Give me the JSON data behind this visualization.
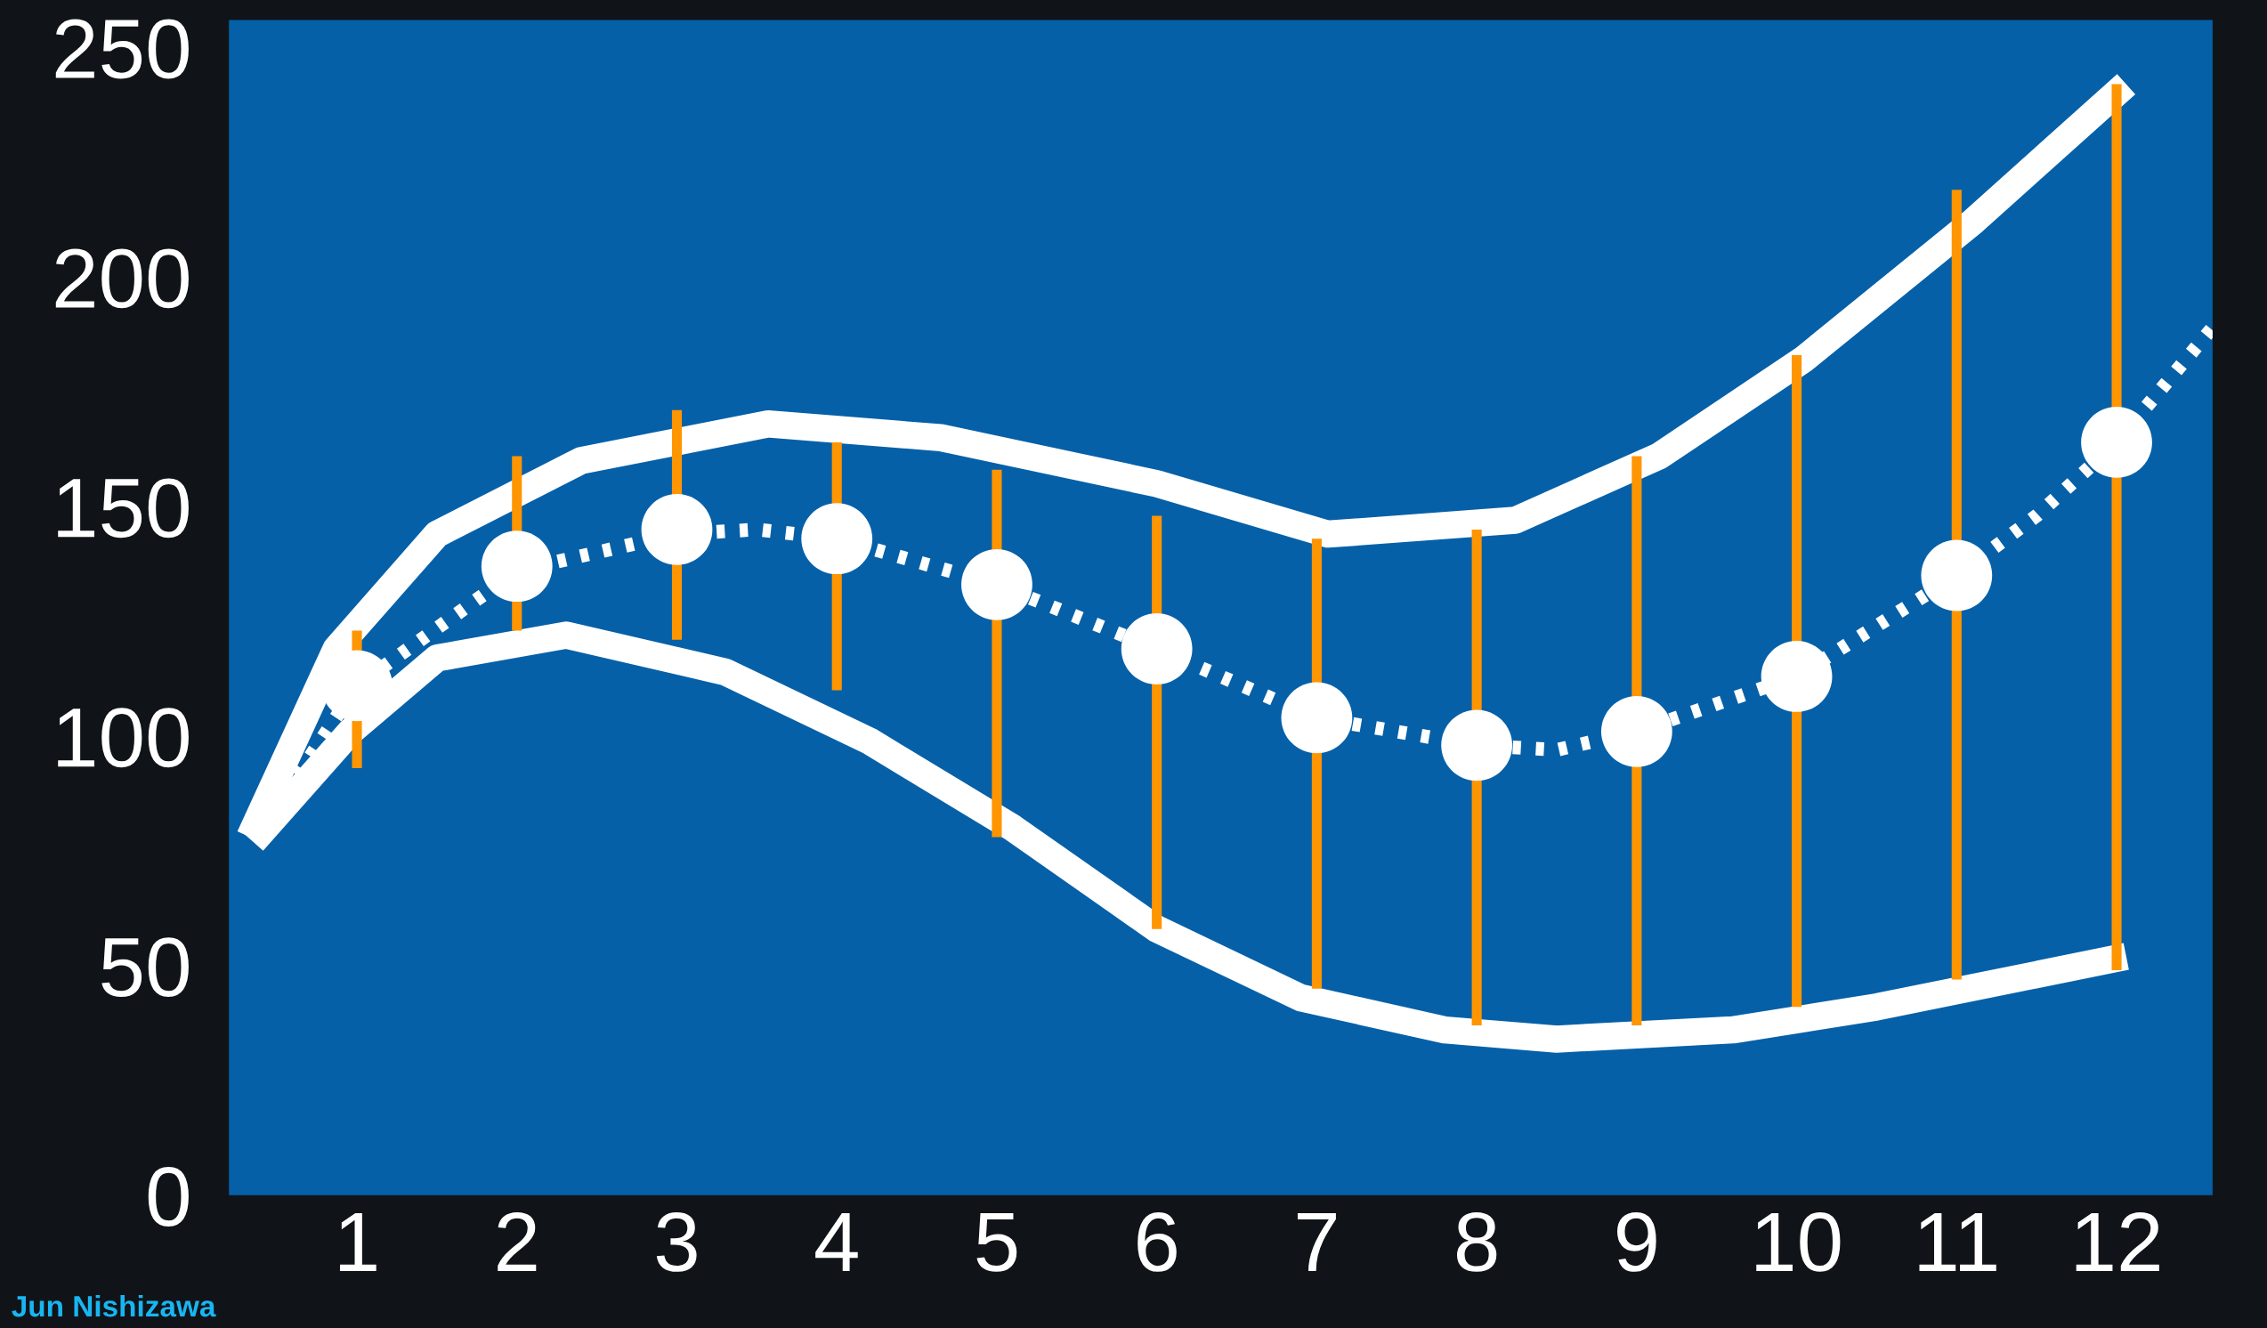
{
  "chart_data": {
    "type": "scatter",
    "x": [
      1,
      2,
      3,
      4,
      5,
      6,
      7,
      8,
      9,
      10,
      11,
      12
    ],
    "xlim": [
      0.2,
      12.6
    ],
    "xticks": [
      1,
      2,
      3,
      4,
      5,
      6,
      7,
      8,
      9,
      10,
      11,
      12
    ],
    "ylim": [
      0,
      256
    ],
    "yticks": [
      0,
      50,
      100,
      150,
      200,
      250
    ],
    "grid": false,
    "legend": false,
    "series": [
      {
        "type": "line",
        "color": "#ffffff",
        "line_style": "solid",
        "marker": "none",
        "x": [
          0.33,
          0.87,
          1.5,
          2.4,
          3.57,
          4.65,
          6.0,
          7.07,
          8.24,
          9.14,
          10.04,
          11.1,
          12.06
        ],
        "values": [
          78,
          119,
          144,
          160,
          168,
          165,
          155,
          144,
          147,
          161,
          182,
          212,
          242
        ]
      },
      {
        "type": "line",
        "color": "#ffffff",
        "line_style": "solid",
        "marker": "none",
        "x": [
          0.35,
          0.96,
          1.5,
          2.31,
          3.3,
          4.2,
          5.1,
          6.0,
          6.9,
          7.8,
          8.5,
          9.6,
          10.5,
          12.06
        ],
        "values": [
          77,
          101,
          117,
          122,
          114,
          99,
          80,
          58,
          43,
          36,
          34,
          36,
          41,
          52
        ]
      },
      {
        "type": "line",
        "color": "#ffffff",
        "line_style": "dotted",
        "marker": "none",
        "x": [
          0.47,
          1,
          2,
          3,
          3.5,
          4,
          5,
          6,
          7,
          8,
          8.5,
          9,
          10,
          11,
          11.5,
          12,
          12.6
        ],
        "values": [
          83,
          111,
          136,
          144,
          145,
          143,
          133,
          119,
          104,
          98,
          97,
          101,
          113,
          135,
          148,
          164,
          189
        ]
      },
      {
        "color": "#ffffff",
        "marker": "circle",
        "values": [
          111,
          137,
          145,
          143,
          133,
          119,
          104,
          98,
          101,
          113,
          135,
          164
        ],
        "errors": [
          [
            93,
            123
          ],
          [
            123,
            161
          ],
          [
            121,
            171
          ],
          [
            110,
            164
          ],
          [
            78,
            158
          ],
          [
            58,
            148
          ],
          [
            45,
            143
          ],
          [
            37,
            145
          ],
          [
            37,
            161
          ],
          [
            41,
            183
          ],
          [
            47,
            219
          ],
          [
            49,
            242
          ]
        ]
      }
    ],
    "annotations": [
      "Jun Nishizawa"
    ]
  }
}
